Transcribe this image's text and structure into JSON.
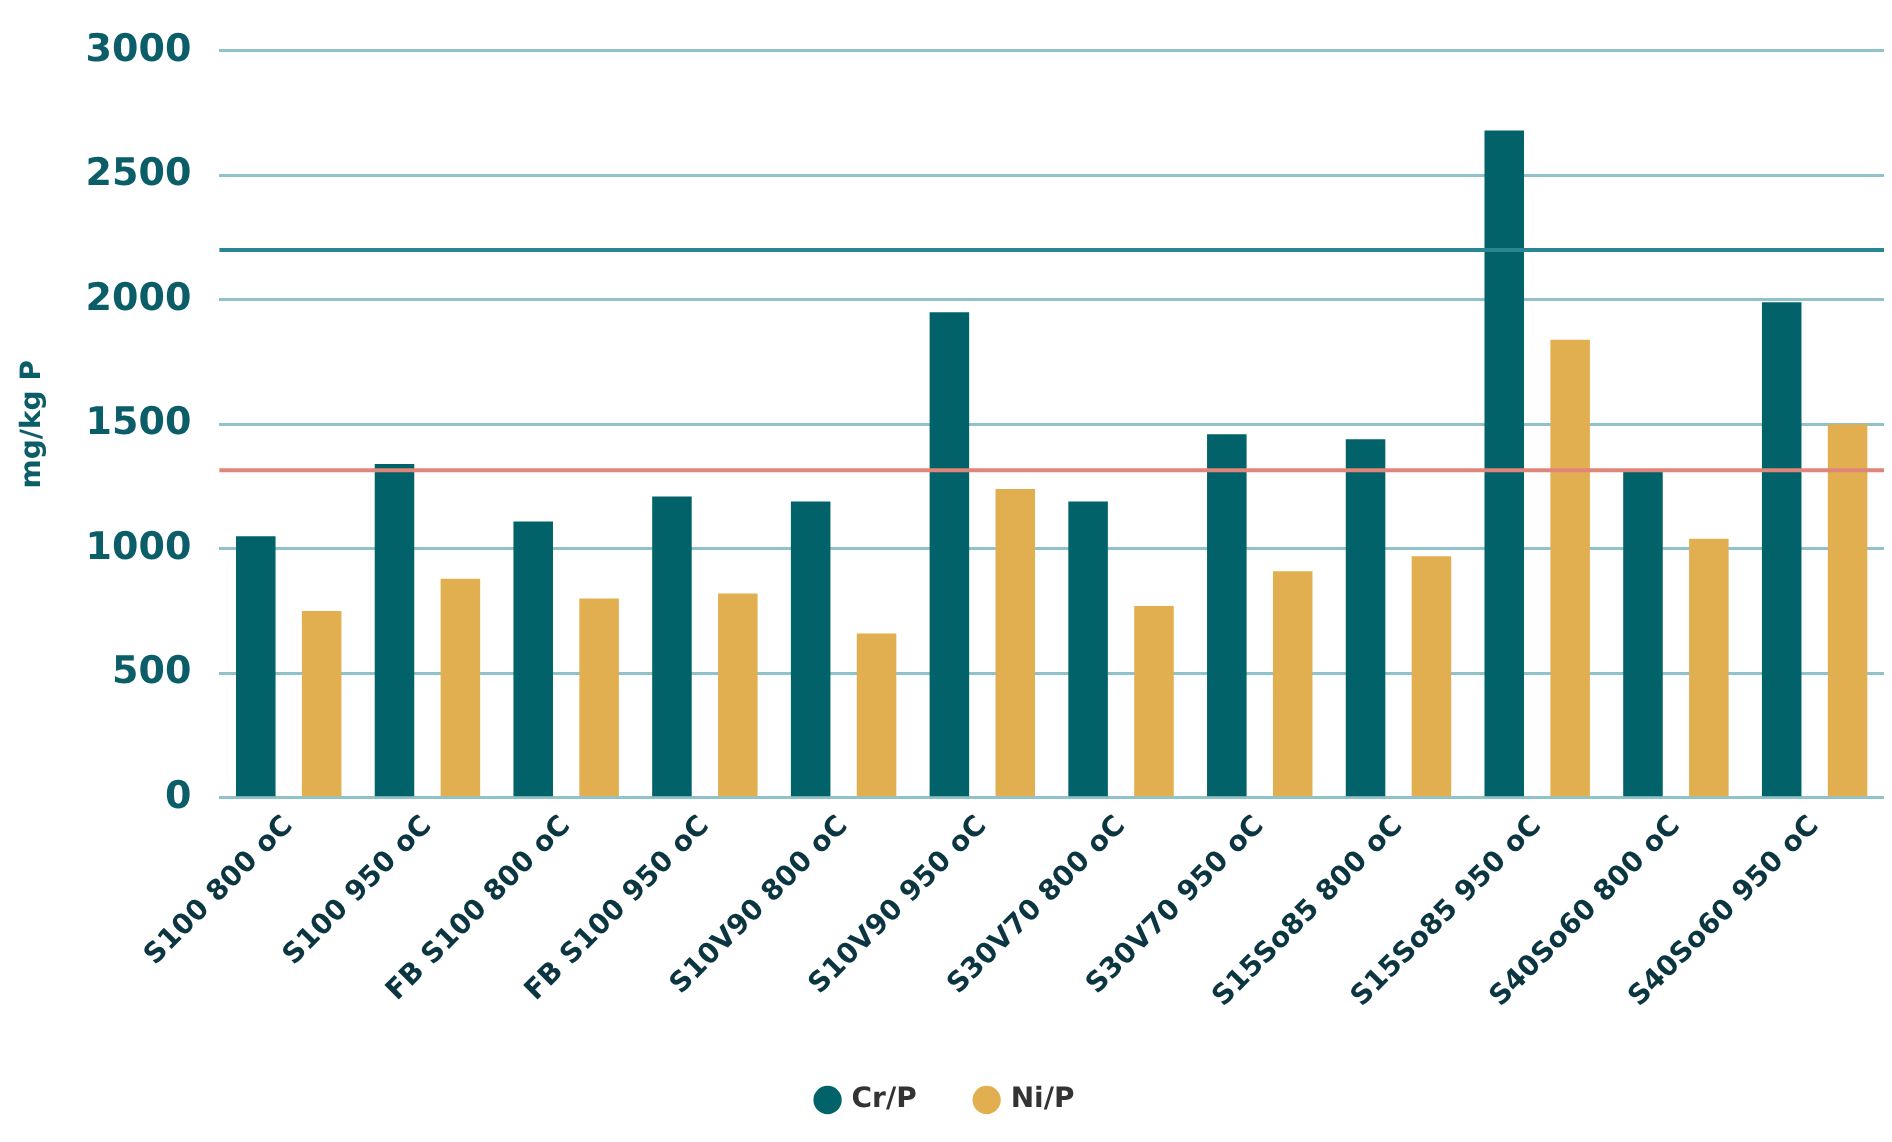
{
  "chart_data": {
    "type": "bar",
    "ylabel": "mg/kg P",
    "categories": [
      "S100 800 oC",
      "S100 950 oC",
      "FB S100 800 oC",
      "FB S100 950 oC",
      "S10V90 800 oC",
      "S10V90 950 oC",
      "S30V70 800 oC",
      "S30V70 950 oC",
      "S15So85 800 oC",
      "S15So85 950 oC",
      "S40So60 800 oC",
      "S40So60 950 oC"
    ],
    "series": [
      {
        "name": "Cr/P",
        "color": "#01626a",
        "values": [
          1050,
          1340,
          1110,
          1210,
          1190,
          1950,
          1190,
          1460,
          1440,
          2680,
          1310,
          1990
        ]
      },
      {
        "name": "Ni/P",
        "color": "#e1af50",
        "values": [
          750,
          880,
          800,
          820,
          660,
          1240,
          770,
          910,
          970,
          1840,
          1040,
          1500
        ]
      }
    ],
    "ylim": [
      0,
      3000
    ],
    "yticks": [
      0,
      500,
      1000,
      1500,
      2000,
      2500,
      3000
    ],
    "grid": "y",
    "legend": "bottom",
    "ref_lines": [
      {
        "axis": "y",
        "value": 2200,
        "color": "#2a8790"
      },
      {
        "axis": "y",
        "value": 1315,
        "color": "#e0857a"
      }
    ]
  }
}
